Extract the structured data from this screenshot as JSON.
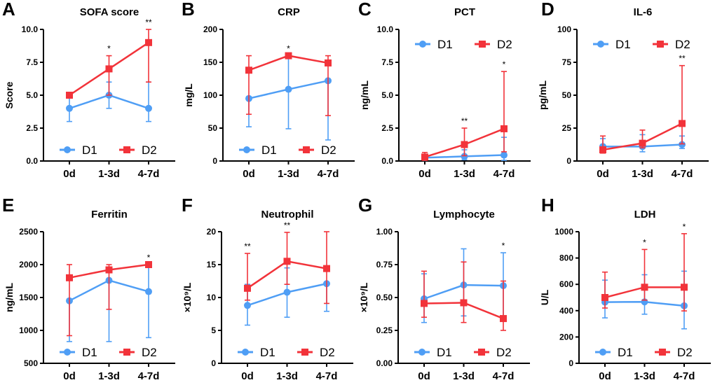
{
  "colors": {
    "D1": "#4f9ef5",
    "D2": "#f2333a"
  },
  "chart_data": [
    {
      "type": "line",
      "letter": "A",
      "title": "SOFA score",
      "ylabel": "Score",
      "categories": [
        "0d",
        "1-3d",
        "4-7d"
      ],
      "ylim": [
        0,
        10
      ],
      "yticks": [
        "0.0",
        "2.5",
        "5.0",
        "7.5",
        "10.0"
      ],
      "legend": "bottom",
      "series": [
        {
          "name": "D1",
          "values": [
            4,
            5,
            4
          ],
          "err_low": [
            3,
            4,
            3
          ],
          "err_high": [
            5,
            6,
            6
          ]
        },
        {
          "name": "D2",
          "values": [
            5,
            7,
            9
          ],
          "err_low": [
            5,
            5,
            6
          ],
          "err_high": [
            5,
            8,
            10
          ]
        }
      ],
      "significance": [
        "",
        "*",
        "**"
      ]
    },
    {
      "type": "line",
      "letter": "B",
      "title": "CRP",
      "ylabel": "mg/L",
      "categories": [
        "0d",
        "1-3d",
        "4-7d"
      ],
      "ylim": [
        0,
        200
      ],
      "yticks": [
        "0",
        "50",
        "100",
        "150",
        "200"
      ],
      "legend": "bottom",
      "series": [
        {
          "name": "D1",
          "values": [
            95,
            109,
            122
          ],
          "err_low": [
            52,
            49,
            32
          ],
          "err_high": [
            95,
            158,
            122
          ]
        },
        {
          "name": "D2",
          "values": [
            138,
            160,
            149
          ],
          "err_low": [
            71,
            160,
            69
          ],
          "err_high": [
            160,
            160,
            160
          ]
        }
      ],
      "significance": [
        "",
        "*",
        ""
      ]
    },
    {
      "type": "line",
      "letter": "C",
      "title": "PCT",
      "ylabel": "ng/mL",
      "categories": [
        "0d",
        "1-3d",
        "4-7d"
      ],
      "ylim": [
        0,
        10
      ],
      "yticks": [
        "0.0",
        "2.5",
        "5.0",
        "7.5",
        "10.0"
      ],
      "legend": "top",
      "series": [
        {
          "name": "D1",
          "values": [
            0.25,
            0.35,
            0.45
          ],
          "err_low": [
            0.1,
            0.1,
            0.05
          ],
          "err_high": [
            0.5,
            0.85,
            1.8
          ]
        },
        {
          "name": "D2",
          "values": [
            0.3,
            1.25,
            2.45
          ],
          "err_low": [
            0.05,
            0.4,
            0.7
          ],
          "err_high": [
            0.65,
            2.5,
            6.8
          ]
        }
      ],
      "significance": [
        "",
        "**",
        "*"
      ]
    },
    {
      "type": "line",
      "letter": "D",
      "title": "IL-6",
      "ylabel": "pg/mL",
      "categories": [
        "0d",
        "1-3d",
        "4-7d"
      ],
      "ylim": [
        0,
        100
      ],
      "yticks": [
        "0",
        "25",
        "50",
        "75",
        "100"
      ],
      "legend": "top",
      "series": [
        {
          "name": "D1",
          "values": [
            11,
            11,
            12.5
          ],
          "err_low": [
            8,
            7,
            9.5
          ],
          "err_high": [
            17,
            20,
            19
          ]
        },
        {
          "name": "D2",
          "values": [
            8.5,
            13.5,
            28.5
          ],
          "err_low": [
            6,
            10,
            13
          ],
          "err_high": [
            19,
            23.5,
            72.5
          ]
        }
      ],
      "significance": [
        "",
        "",
        "**"
      ]
    },
    {
      "type": "line",
      "letter": "E",
      "title": "Ferritin",
      "ylabel": "ng/mL",
      "categories": [
        "0d",
        "1-3d",
        "4-7d"
      ],
      "ylim": [
        500,
        2500
      ],
      "yticks": [
        "500",
        "1000",
        "1500",
        "2000",
        "2500"
      ],
      "legend": "bottom",
      "series": [
        {
          "name": "D1",
          "values": [
            1450,
            1760,
            1590
          ],
          "err_low": [
            830,
            830,
            890
          ],
          "err_high": [
            1450,
            1760,
            2000
          ]
        },
        {
          "name": "D2",
          "values": [
            1800,
            1920,
            2000
          ],
          "err_low": [
            920,
            1320,
            2000
          ],
          "err_high": [
            2000,
            2000,
            2000
          ]
        }
      ],
      "significance": [
        "",
        "",
        "*"
      ]
    },
    {
      "type": "line",
      "letter": "F",
      "title": "Neutrophil",
      "ylabel": "×10⁹/L",
      "categories": [
        "0d",
        "1-3d",
        "4-7d"
      ],
      "ylim": [
        0,
        20
      ],
      "yticks": [
        "0",
        "5",
        "10",
        "15",
        "20"
      ],
      "legend": "bottom",
      "series": [
        {
          "name": "D1",
          "values": [
            8.8,
            10.8,
            12.1
          ],
          "err_low": [
            5.8,
            7,
            7.9
          ],
          "err_high": [
            12,
            14.5,
            12.1
          ]
        },
        {
          "name": "D2",
          "values": [
            11.4,
            15.5,
            14.4
          ],
          "err_low": [
            9.6,
            12,
            9.1
          ],
          "err_high": [
            16.7,
            19.9,
            20
          ]
        }
      ],
      "significance": [
        "**",
        "**",
        ""
      ]
    },
    {
      "type": "line",
      "letter": "G",
      "title": "Lymphocyte",
      "ylabel": "×10⁹/L",
      "categories": [
        "0d",
        "1-3d",
        "4-7d"
      ],
      "ylim": [
        0,
        1
      ],
      "yticks": [
        "0.00",
        "0.25",
        "0.50",
        "0.75",
        "1.00"
      ],
      "legend": "bottom",
      "series": [
        {
          "name": "D1",
          "values": [
            0.49,
            0.595,
            0.59
          ],
          "err_low": [
            0.31,
            0.36,
            0.36
          ],
          "err_high": [
            0.68,
            0.87,
            0.84
          ]
        },
        {
          "name": "D2",
          "values": [
            0.455,
            0.46,
            0.34
          ],
          "err_low": [
            0.35,
            0.31,
            0.25
          ],
          "err_high": [
            0.7,
            0.77,
            0.625
          ]
        }
      ],
      "significance": [
        "",
        "",
        "*"
      ]
    },
    {
      "type": "line",
      "letter": "H",
      "title": "LDH",
      "ylabel": "U/L",
      "categories": [
        "0d",
        "1-3d",
        "4-7d"
      ],
      "ylim": [
        0,
        1000
      ],
      "yticks": [
        "0",
        "200",
        "400",
        "600",
        "800",
        "1000"
      ],
      "legend": "bottom",
      "series": [
        {
          "name": "D1",
          "values": [
            465,
            467,
            437
          ],
          "err_low": [
            345,
            373,
            262
          ],
          "err_high": [
            632,
            673,
            700
          ]
        },
        {
          "name": "D2",
          "values": [
            500,
            578,
            578
          ],
          "err_low": [
            420,
            480,
            398
          ],
          "err_high": [
            693,
            865,
            985
          ]
        }
      ],
      "significance": [
        "",
        "*",
        "*"
      ]
    }
  ]
}
